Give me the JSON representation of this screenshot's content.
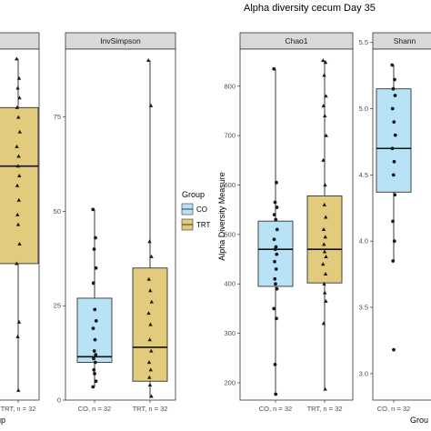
{
  "title": "Alpha diversity cecum Day 35",
  "ylabel": "Alpha Diversity Measure",
  "legend": {
    "title": "Group",
    "items": [
      {
        "label": "CO",
        "color": "#b8e2f5"
      },
      {
        "label": "TRT",
        "color": "#e2cb7c"
      }
    ]
  },
  "colors": {
    "CO": "#b8e2f5",
    "TRT": "#e2cb7c",
    "strip": "#d9d9d9"
  },
  "chart_data": [
    {
      "type": "box",
      "panel": "Shannon_cut_left",
      "strip": "",
      "categories": [
        "",
        "TRT, n = 32"
      ],
      "ylim": [
        2.0,
        5.6
      ],
      "yticks": [],
      "boxes": [
        {
          "group": "TRT",
          "q1": 3.4,
          "median": 4.4,
          "q3": 5.0,
          "min": 2.1,
          "max": 5.5,
          "points": [
            5.5,
            5.3,
            5.2,
            5.1,
            5.0,
            4.9,
            4.75,
            4.6,
            4.5,
            4.4,
            4.3,
            4.2,
            4.05,
            3.9,
            3.8,
            3.6,
            3.4,
            2.8,
            2.65,
            2.1
          ]
        }
      ]
    },
    {
      "type": "box",
      "panel": "InvSimpson",
      "strip": "InvSimpson",
      "categories": [
        "CO, n = 32",
        "TRT, n = 32"
      ],
      "ylim": [
        0,
        93
      ],
      "yticks": [
        0,
        25,
        50,
        75
      ],
      "boxes": [
        {
          "group": "CO",
          "q1": 10,
          "median": 11.5,
          "q3": 27,
          "min": 3.5,
          "max": 50.5,
          "points": [
            50.5,
            43,
            40,
            35,
            31,
            24,
            21,
            19,
            16,
            13,
            12,
            11,
            10,
            8,
            7,
            5,
            3.5
          ]
        },
        {
          "group": "TRT",
          "q1": 5,
          "median": 14,
          "q3": 35,
          "min": 0.5,
          "max": 90,
          "points": [
            90,
            78,
            42,
            38,
            32,
            29,
            26,
            23,
            20,
            16,
            13,
            10,
            8,
            6,
            4,
            1
          ]
        }
      ]
    },
    {
      "type": "box",
      "panel": "Chao1",
      "strip": "Chao1",
      "categories": [
        "CO, n = 32",
        "TRT, n = 32"
      ],
      "ylim": [
        165,
        875
      ],
      "yticks": [
        200,
        300,
        400,
        500,
        600,
        700,
        800
      ],
      "boxes": [
        {
          "group": "CO",
          "q1": 395,
          "median": 470,
          "q3": 527,
          "min": 177,
          "max": 835,
          "points": [
            835,
            605,
            565,
            555,
            540,
            530,
            510,
            490,
            475,
            470,
            460,
            445,
            430,
            410,
            400,
            390,
            350,
            330,
            237,
            177
          ]
        },
        {
          "group": "TRT",
          "q1": 402,
          "median": 470,
          "q3": 578,
          "min": 187,
          "max": 852,
          "points": [
            852,
            848,
            822,
            780,
            760,
            740,
            700,
            650,
            600,
            560,
            535,
            510,
            495,
            480,
            465,
            455,
            440,
            420,
            400,
            382,
            365,
            320,
            187
          ]
        }
      ]
    },
    {
      "type": "box",
      "panel": "Shannon",
      "strip": "Shann",
      "categories": [
        "CO, n = 32"
      ],
      "ylim": [
        2.8,
        5.45
      ],
      "yticks": [
        3.0,
        3.5,
        4.0,
        4.5,
        5.0,
        5.5
      ],
      "boxes": [
        {
          "group": "CO",
          "q1": 4.37,
          "median": 4.7,
          "q3": 5.15,
          "min": 3.85,
          "max": 5.33,
          "points": [
            5.33,
            5.22,
            5.15,
            5.1,
            5.0,
            4.9,
            4.8,
            4.7,
            4.6,
            4.5,
            4.35,
            4.15,
            4.0,
            3.85,
            3.18
          ]
        }
      ]
    }
  ],
  "bottom_labels": {
    "cut_xaxis": "Group",
    "right_xaxis": "Grou"
  }
}
